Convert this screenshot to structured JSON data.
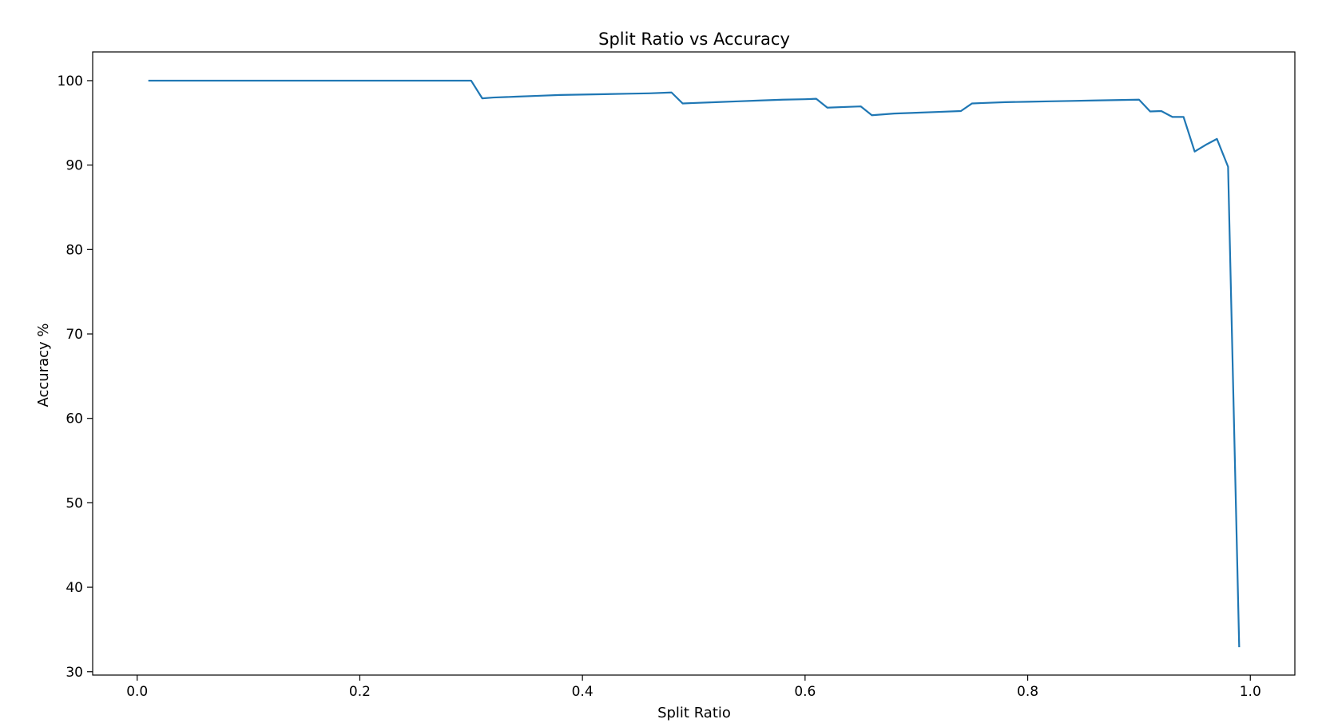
{
  "chart_data": {
    "type": "line",
    "title": "Split Ratio vs Accuracy",
    "xlabel": "Split Ratio",
    "ylabel": "Accuracy %",
    "xlim": [
      -0.04,
      1.04
    ],
    "ylim": [
      29.6,
      103.4
    ],
    "xticks": [
      0.0,
      0.2,
      0.4,
      0.6,
      0.8,
      1.0
    ],
    "xtick_labels": [
      "0.0",
      "0.2",
      "0.4",
      "0.6",
      "0.8",
      "1.0"
    ],
    "yticks": [
      30,
      40,
      50,
      60,
      70,
      80,
      90,
      100
    ],
    "ytick_labels": [
      "30",
      "40",
      "50",
      "60",
      "70",
      "80",
      "90",
      "100"
    ],
    "grid": false,
    "legend": "none",
    "series": [
      {
        "color": "#1f77b4",
        "x": [
          0.01,
          0.3,
          0.31,
          0.32,
          0.34,
          0.36,
          0.38,
          0.4,
          0.42,
          0.44,
          0.46,
          0.48,
          0.49,
          0.5,
          0.52,
          0.54,
          0.56,
          0.58,
          0.6,
          0.61,
          0.62,
          0.64,
          0.65,
          0.66,
          0.68,
          0.7,
          0.72,
          0.74,
          0.75,
          0.76,
          0.78,
          0.8,
          0.82,
          0.84,
          0.86,
          0.88,
          0.9,
          0.91,
          0.92,
          0.93,
          0.94,
          0.95,
          0.96,
          0.97,
          0.98,
          0.99
        ],
        "y": [
          100.0,
          100.0,
          97.9,
          98.0,
          98.1,
          98.2,
          98.3,
          98.35,
          98.4,
          98.45,
          98.5,
          98.6,
          97.3,
          97.35,
          97.45,
          97.55,
          97.65,
          97.75,
          97.8,
          97.85,
          96.8,
          96.9,
          96.95,
          95.9,
          96.1,
          96.2,
          96.3,
          96.4,
          97.3,
          97.35,
          97.45,
          97.5,
          97.55,
          97.6,
          97.65,
          97.7,
          97.75,
          96.35,
          96.4,
          95.7,
          95.7,
          91.6,
          92.4,
          93.1,
          89.8,
          32.9
        ]
      }
    ]
  }
}
